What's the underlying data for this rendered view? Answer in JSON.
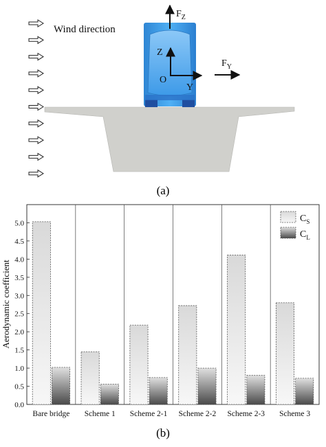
{
  "panel_a": {
    "caption": "(a)",
    "wind_label": "Wind direction",
    "force_lift_symbol": "F",
    "force_lift_subscript": "Z",
    "force_drag_symbol": "F",
    "force_drag_subscript": "Y",
    "axis_z": "Z",
    "axis_y": "Y",
    "origin": "O",
    "wind_arrow_count": 10,
    "colors": {
      "deck": "#d0d0cc",
      "train": "#3a9fe6",
      "train_light": "#a8d8ff"
    }
  },
  "panel_b": {
    "caption": "(b)"
  },
  "chart_data": {
    "type": "bar",
    "categories": [
      "Bare bridge",
      "Scheme 1",
      "Scheme 2-1",
      "Scheme 2-2",
      "Scheme 2-3",
      "Scheme 3"
    ],
    "series": [
      {
        "name": "Cs",
        "symbol": "C",
        "subscript": "S",
        "values": [
          5.03,
          1.45,
          2.18,
          2.72,
          4.11,
          2.8
        ],
        "style": "light-gradient-dashed"
      },
      {
        "name": "CL",
        "symbol": "C",
        "subscript": "L",
        "values": [
          1.02,
          0.56,
          0.74,
          1.0,
          0.8,
          0.72
        ],
        "style": "dark-gradient-dashed"
      }
    ],
    "ylabel": "Aerodynamic coefficient",
    "xlabel": "",
    "ylim": [
      0.0,
      5.5
    ],
    "yticks": [
      "0.0",
      "0.5",
      "1.0",
      "1.5",
      "2.0",
      "2.5",
      "3.0",
      "3.5",
      "4.0",
      "4.5",
      "5.0"
    ],
    "legend_position": "top-right",
    "grid": false,
    "separators": "vertical lines between categories"
  }
}
